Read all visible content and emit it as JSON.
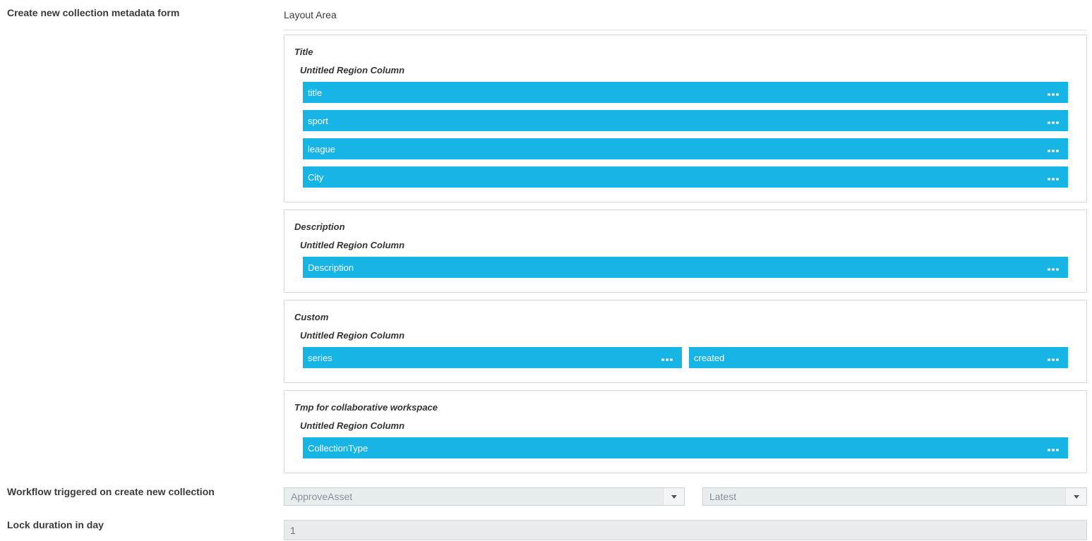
{
  "header": {
    "form_label": "Create new collection metadata form",
    "layout_area_label": "Layout Area"
  },
  "sections": [
    {
      "title": "Title",
      "region_label": "Untitled Region Column",
      "fields": [
        {
          "label": "title"
        },
        {
          "label": "sport"
        },
        {
          "label": "league"
        },
        {
          "label": "City"
        }
      ]
    },
    {
      "title": "Description",
      "region_label": "Untitled Region Column",
      "fields": [
        {
          "label": "Description"
        }
      ]
    },
    {
      "title": "Custom",
      "region_label": "Untitled Region Column",
      "fields": [
        {
          "label": "series"
        },
        {
          "label": "created"
        }
      ]
    },
    {
      "title": "Tmp for collaborative workspace",
      "region_label": "Untitled Region Column",
      "fields": [
        {
          "label": "CollectionType"
        }
      ]
    }
  ],
  "workflow_row": {
    "label": "Workflow triggered on create new collection",
    "workflow_select_value": "ApproveAsset",
    "version_select_value": "Latest"
  },
  "lock_row": {
    "label": "Lock duration in day",
    "value": "1"
  },
  "colors": {
    "field_chip_blue": "#17b4e6",
    "control_background_grey": "#e8edf0",
    "section_border_grey": "#d9d9d9"
  }
}
